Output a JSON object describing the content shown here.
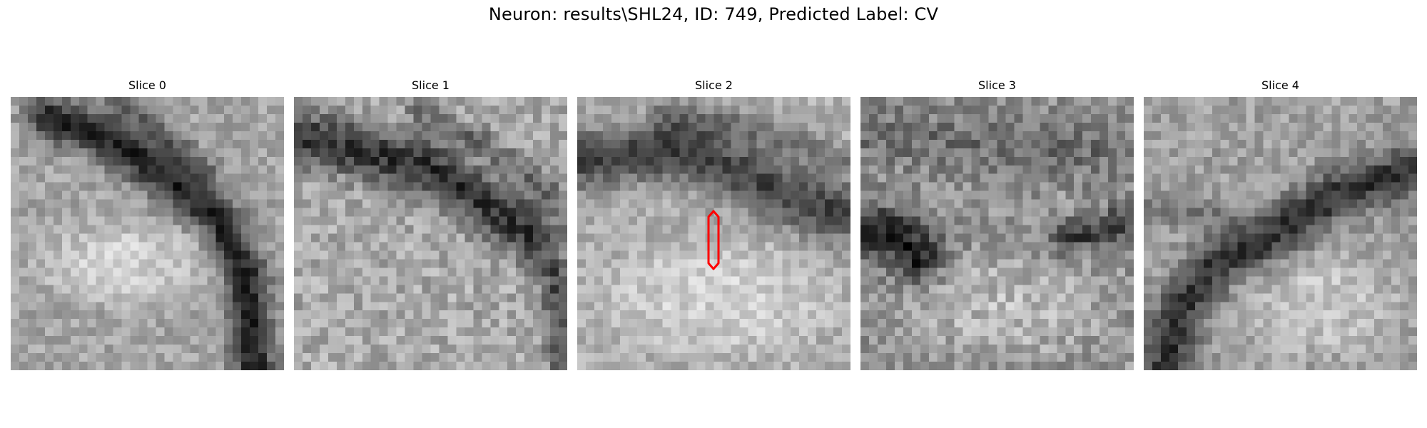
{
  "figure": {
    "title": "Neuron: results\\SHL24, ID: 749, Predicted Label: CV"
  },
  "slices": [
    {
      "title": "Slice 0"
    },
    {
      "title": "Slice 1"
    },
    {
      "title": "Slice 2"
    },
    {
      "title": "Slice 3"
    },
    {
      "title": "Slice 4"
    }
  ],
  "colors": {
    "marker": "#ff0000",
    "background": "#ffffff"
  }
}
